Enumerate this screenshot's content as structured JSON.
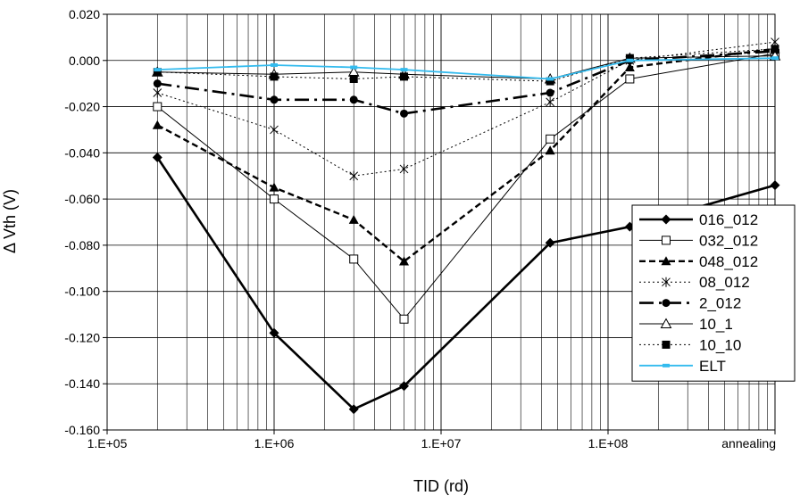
{
  "chart_data": {
    "type": "line",
    "title": "",
    "xlabel": "TID (rd)",
    "ylabel": "Δ Vth (V)",
    "x_scale": "log",
    "xlim": [
      100000,
      1000000000
    ],
    "ylim": [
      -0.16,
      0.02
    ],
    "y_ticks": [
      0.02,
      0.0,
      -0.02,
      -0.04,
      -0.06,
      -0.08,
      -0.1,
      -0.12,
      -0.14,
      -0.16
    ],
    "y_tick_labels": [
      "0.020",
      "0.000",
      "-0.020",
      "-0.040",
      "-0.060",
      "-0.080",
      "-0.100",
      "-0.120",
      "-0.140",
      "-0.160"
    ],
    "x_ticks": [
      100000,
      1000000,
      10000000,
      100000000,
      1000000000
    ],
    "x_tick_labels": [
      "1.E+05",
      "1.E+06",
      "1.E+07",
      "1.E+08",
      "annealing"
    ],
    "grid": true,
    "legend_position": "bottom-right",
    "x": [
      200000,
      1000000,
      3000000,
      6000000,
      45000000,
      135000000,
      1000000000
    ],
    "series": [
      {
        "name": "016_012",
        "color": "#000000",
        "dash": "solid",
        "width": 2.6,
        "marker": "diamond",
        "values": [
          -0.042,
          -0.118,
          -0.151,
          -0.141,
          -0.079,
          -0.072,
          -0.054
        ]
      },
      {
        "name": "032_012",
        "color": "#000000",
        "dash": "solid",
        "width": 1,
        "marker": "square-open",
        "values": [
          -0.02,
          -0.06,
          -0.086,
          -0.112,
          -0.034,
          -0.008,
          0.003
        ]
      },
      {
        "name": "048_012",
        "color": "#000000",
        "dash": "dashed",
        "width": 2.4,
        "marker": "triangle",
        "values": [
          -0.028,
          -0.055,
          -0.069,
          -0.087,
          -0.039,
          -0.003,
          0.005
        ]
      },
      {
        "name": "08_012",
        "color": "#000000",
        "dash": "dotted",
        "width": 1,
        "marker": "star",
        "values": [
          -0.014,
          -0.03,
          -0.05,
          -0.047,
          -0.018,
          0.0,
          0.008
        ]
      },
      {
        "name": "2_012",
        "color": "#000000",
        "dash": "longdash",
        "width": 2.6,
        "marker": "circle",
        "values": [
          -0.01,
          -0.017,
          -0.017,
          -0.023,
          -0.014,
          0.0,
          0.004
        ]
      },
      {
        "name": "10_1",
        "color": "#000000",
        "dash": "solid",
        "width": 1,
        "marker": "triangle-open",
        "values": [
          -0.005,
          -0.006,
          -0.005,
          -0.006,
          -0.008,
          0.001,
          0.002
        ]
      },
      {
        "name": "10_10",
        "color": "#000000",
        "dash": "dotted",
        "width": 1,
        "marker": "square",
        "values": [
          -0.005,
          -0.007,
          -0.008,
          -0.007,
          -0.009,
          0.001,
          0.005
        ]
      },
      {
        "name": "ELT",
        "color": "#33bbee",
        "dash": "solid",
        "width": 1.8,
        "marker": "dash",
        "values": [
          -0.004,
          -0.002,
          -0.003,
          -0.004,
          -0.008,
          0.0,
          0.001
        ]
      }
    ]
  }
}
